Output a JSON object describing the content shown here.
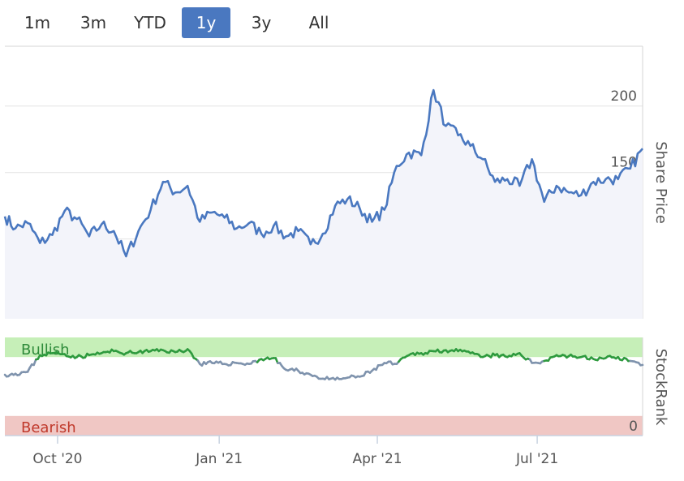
{
  "range_selector": {
    "buttons": [
      {
        "label": "1m",
        "active": false
      },
      {
        "label": "3m",
        "active": false
      },
      {
        "label": "YTD",
        "active": false
      },
      {
        "label": "1y",
        "active": true
      },
      {
        "label": "3y",
        "active": false
      },
      {
        "label": "All",
        "active": false
      }
    ],
    "active_color": "#4a78c0"
  },
  "chart_data": [
    {
      "type": "area",
      "ylabel": "Share Price",
      "ylim": [
        40,
        245
      ],
      "yticks": [
        50,
        100,
        150,
        200
      ],
      "x_tick_labels": [
        "Oct '20",
        "Jan '21",
        "Apr '21",
        "Jul '21"
      ],
      "grid": true,
      "line_color": "#4a78c0",
      "fill_color": "#f3f4fa",
      "series": [
        {
          "x": [
            "2020-09-01",
            "2020-09-07",
            "2020-09-14",
            "2020-09-21",
            "2020-09-28",
            "2020-10-05",
            "2020-10-12",
            "2020-10-19",
            "2020-10-26",
            "2020-11-02",
            "2020-11-09",
            "2020-11-16",
            "2020-11-23",
            "2020-11-30",
            "2020-12-07",
            "2020-12-14",
            "2020-12-21",
            "2020-12-28",
            "2021-01-04",
            "2021-01-11",
            "2021-01-18",
            "2021-01-25",
            "2021-02-01",
            "2021-02-08",
            "2021-02-15",
            "2021-02-22",
            "2021-03-01",
            "2021-03-08",
            "2021-03-15",
            "2021-03-22",
            "2021-03-29",
            "2021-04-05",
            "2021-04-12",
            "2021-04-19",
            "2021-04-26",
            "2021-05-03",
            "2021-05-10",
            "2021-05-17",
            "2021-05-24",
            "2021-05-31",
            "2021-06-07",
            "2021-06-14",
            "2021-06-21",
            "2021-06-28",
            "2021-07-05",
            "2021-07-12",
            "2021-07-19",
            "2021-07-26",
            "2021-08-02",
            "2021-08-09",
            "2021-08-16",
            "2021-08-23",
            "2021-08-30"
          ],
          "values": [
            117,
            108,
            112,
            97,
            103,
            121,
            115,
            102,
            111,
            106,
            87,
            106,
            122,
            143,
            135,
            140,
            113,
            120,
            116,
            108,
            112,
            104,
            110,
            102,
            106,
            96,
            104,
            125,
            130,
            123,
            113,
            122,
            155,
            165,
            163,
            212,
            185,
            178,
            170,
            160,
            143,
            145,
            140,
            160,
            128,
            140,
            135,
            133,
            143,
            145,
            145,
            153,
            168
          ]
        }
      ]
    },
    {
      "type": "line",
      "ylabel": "StockRank",
      "ylim": [
        0,
        100
      ],
      "yticks": [
        0
      ],
      "zones": [
        {
          "label": "Bullish",
          "color": "#c6efb8",
          "text_color": "#2e8b3a",
          "from": 80,
          "to": 100
        },
        {
          "label": "Bearish",
          "color": "#f0c7c4",
          "text_color": "#c0392b",
          "from": 0,
          "to": 20
        }
      ],
      "x_tick_labels": [
        "Oct '20",
        "Jan '21",
        "Apr '21",
        "Jul '21"
      ],
      "bullish_color": "#2e9a3e",
      "neutral_color": "#7f93ad",
      "series": [
        {
          "x": [
            "2020-09-01",
            "2020-09-07",
            "2020-09-14",
            "2020-09-21",
            "2020-09-28",
            "2020-10-05",
            "2020-10-12",
            "2020-10-19",
            "2020-10-26",
            "2020-11-02",
            "2020-11-09",
            "2020-11-16",
            "2020-11-23",
            "2020-11-30",
            "2020-12-07",
            "2020-12-14",
            "2020-12-21",
            "2020-12-28",
            "2021-01-04",
            "2021-01-11",
            "2021-01-18",
            "2021-01-25",
            "2021-02-01",
            "2021-02-08",
            "2021-02-15",
            "2021-02-22",
            "2021-03-01",
            "2021-03-08",
            "2021-03-15",
            "2021-03-22",
            "2021-03-29",
            "2021-04-05",
            "2021-04-12",
            "2021-04-19",
            "2021-04-26",
            "2021-05-03",
            "2021-05-10",
            "2021-05-17",
            "2021-05-24",
            "2021-05-31",
            "2021-06-07",
            "2021-06-14",
            "2021-06-21",
            "2021-06-28",
            "2021-07-05",
            "2021-07-12",
            "2021-07-19",
            "2021-07-26",
            "2021-08-02",
            "2021-08-09",
            "2021-08-16",
            "2021-08-23",
            "2021-08-30"
          ],
          "values": [
            62,
            63,
            65,
            82,
            84,
            83,
            80,
            82,
            84,
            86,
            84,
            85,
            86,
            87,
            85,
            88,
            73,
            74,
            73,
            74,
            73,
            78,
            79,
            67,
            66,
            62,
            58,
            57,
            59,
            60,
            66,
            74,
            73,
            82,
            84,
            86,
            87,
            86,
            84,
            80,
            82,
            80,
            84,
            74,
            76,
            82,
            81,
            80,
            78,
            79,
            80,
            76,
            72
          ]
        }
      ]
    }
  ]
}
